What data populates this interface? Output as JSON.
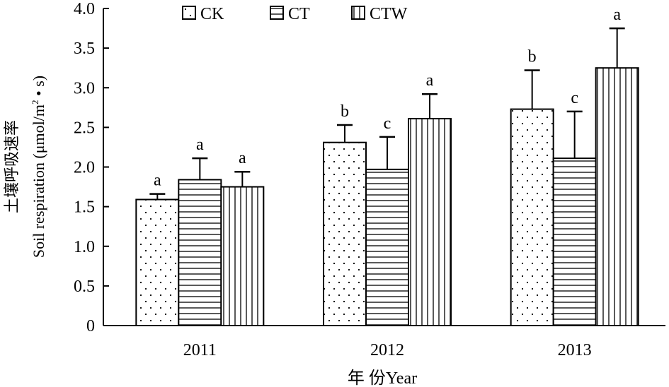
{
  "chart_data": {
    "type": "bar",
    "title": "",
    "ylabel_cn": "土壤呼吸速率",
    "ylabel_en_prefix": "Soil respiration (μmol/m",
    "ylabel_en_sup": "2",
    "ylabel_en_suffix": " • s)",
    "xlabel": "年 份Year",
    "ylim": [
      0,
      4.0
    ],
    "yticks": [
      "0",
      "0.5",
      "1.0",
      "1.5",
      "2.0",
      "2.5",
      "3.0",
      "3.5",
      "4.0"
    ],
    "categories": [
      "2011",
      "2012",
      "2013"
    ],
    "legend_position": "top",
    "series": [
      {
        "name": "CK",
        "pattern": "dots",
        "values": [
          1.59,
          2.31,
          2.73
        ],
        "errors": [
          0.07,
          0.22,
          0.49
        ],
        "letters": [
          "a",
          "b",
          "b"
        ]
      },
      {
        "name": "CT",
        "pattern": "horizontal",
        "values": [
          1.84,
          1.97,
          2.11
        ],
        "errors": [
          0.27,
          0.41,
          0.59
        ],
        "letters": [
          "a",
          "c",
          "c"
        ]
      },
      {
        "name": "CTW",
        "pattern": "vertical",
        "values": [
          1.75,
          2.61,
          3.25
        ],
        "errors": [
          0.19,
          0.31,
          0.5
        ],
        "letters": [
          "a",
          "a",
          "a"
        ]
      }
    ]
  }
}
